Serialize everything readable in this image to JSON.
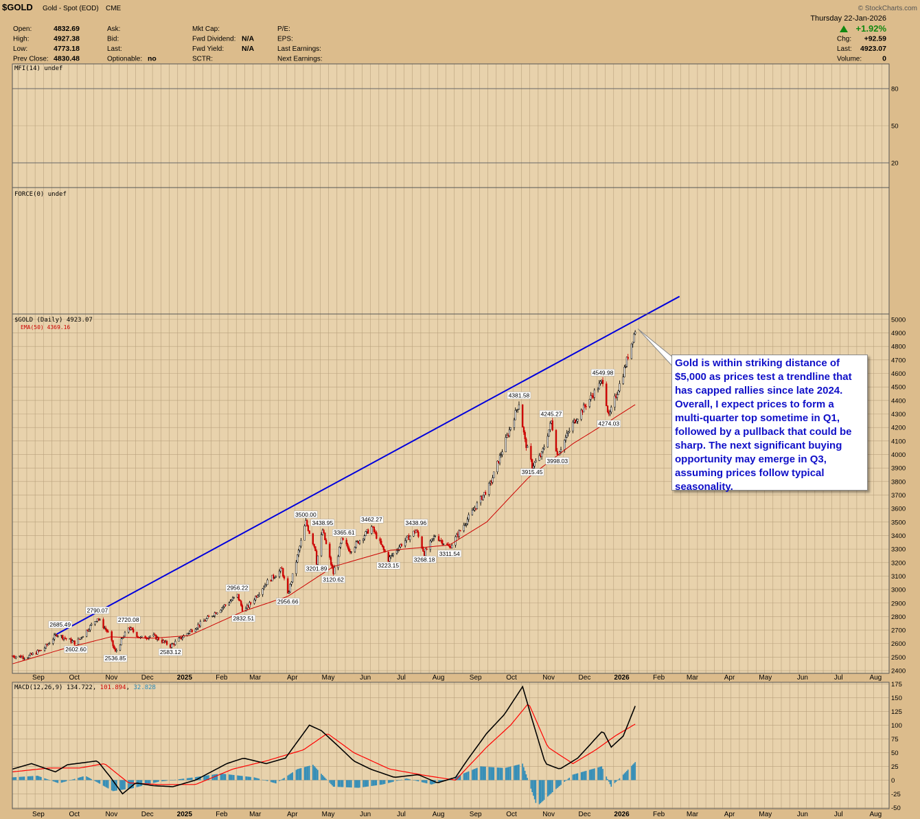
{
  "header": {
    "symbol": "$GOLD",
    "description": "Gold - Spot (EOD)",
    "exchange": "CME",
    "watermark": "© StockCharts.com",
    "date": "Thursday  22-Jan-2026",
    "fields": [
      {
        "label": "Open:",
        "value": "4832.69"
      },
      {
        "label": "High:",
        "value": "4927.38"
      },
      {
        "label": "Low:",
        "value": "4773.18"
      },
      {
        "label": "Prev Close:",
        "value": "4830.48"
      },
      {
        "label": "Ask:",
        "value": ""
      },
      {
        "label": "Bid:",
        "value": ""
      },
      {
        "label": "Last:",
        "value": ""
      },
      {
        "label": "Optionable:",
        "value": "no"
      },
      {
        "label": "Mkt Cap:",
        "value": ""
      },
      {
        "label": "Fwd Dividend:",
        "value": "N/A"
      },
      {
        "label": "Fwd Yield:",
        "value": "N/A"
      },
      {
        "label": "SCTR:",
        "value": ""
      },
      {
        "label": "P/E:",
        "value": ""
      },
      {
        "label": "EPS:",
        "value": ""
      },
      {
        "label": "Last Earnings:",
        "value": ""
      },
      {
        "label": "Next Earnings:",
        "value": ""
      }
    ],
    "change_pct": "+1.92%",
    "right_fields": [
      {
        "label": "Chg:",
        "value": "+92.59"
      },
      {
        "label": "Last:",
        "value": "4923.07"
      },
      {
        "label": "Volume:",
        "value": "0"
      }
    ]
  },
  "annotation": "Gold is within striking distance of $5,000 as prices test a trendline that has capped rallies since late 2024. Overall, I expect prices to form a multi-quarter top sometime in Q1, followed by a pullback that could be sharp. The next significant buying opportunity may emerge in Q3, assuming prices follow typical seasonality.",
  "chart_data": [
    {
      "type": "line",
      "panel": "MFI",
      "legend": "MFI(14) undef",
      "y_ticks": [
        80,
        50,
        20
      ],
      "ylim": [
        0,
        100
      ],
      "values": []
    },
    {
      "type": "line",
      "panel": "FORCE",
      "legend": "FORCE(0) undef",
      "values": []
    },
    {
      "type": "candlestick",
      "panel": "price",
      "legend": "$GOLD (Daily) 4923.07",
      "ema_legend": "EMA(50) 4369.16",
      "ylim": [
        2380,
        5040
      ],
      "y_ticks": [
        2400,
        2500,
        2600,
        2700,
        2800,
        2900,
        3000,
        3100,
        3200,
        3300,
        3400,
        3500,
        3600,
        3700,
        3800,
        3900,
        4000,
        4100,
        4200,
        4300,
        4400,
        4500,
        4600,
        4700,
        4800,
        4900,
        5000
      ],
      "x_labels": [
        "Sep",
        "Oct",
        "Nov",
        "Dec",
        "2025",
        "Feb",
        "Mar",
        "Apr",
        "May",
        "Jun",
        "Jul",
        "Aug",
        "Sep",
        "Oct",
        "Nov",
        "Dec",
        "2026",
        "Feb",
        "Mar",
        "Apr",
        "May",
        "Jun",
        "Jul",
        "Aug"
      ],
      "x_label_dates": [
        "2024-09-01",
        "2024-10-01",
        "2024-11-01",
        "2024-12-01",
        "2025-01-01",
        "2025-02-01",
        "2025-03-01",
        "2025-04-01",
        "2025-05-01",
        "2025-06-01",
        "2025-07-01",
        "2025-08-01",
        "2025-09-01",
        "2025-10-01",
        "2025-11-01",
        "2025-12-01",
        "2026-01-01",
        "2026-02-01",
        "2026-03-01",
        "2026-04-01",
        "2026-05-01",
        "2026-06-01",
        "2026-07-01",
        "2026-08-01"
      ],
      "xlim": [
        "2024-08-20",
        "2026-08-22"
      ],
      "price_path": [
        [
          "2024-08-20",
          2510
        ],
        [
          "2024-09-01",
          2500
        ],
        [
          "2024-09-15",
          2560
        ],
        [
          "2024-09-26",
          2670
        ],
        [
          "2024-10-08",
          2620
        ],
        [
          "2024-10-12",
          2602.6
        ],
        [
          "2024-10-30",
          2790.07
        ],
        [
          "2024-11-08",
          2680
        ],
        [
          "2024-11-14",
          2536.85
        ],
        [
          "2024-11-25",
          2720.08
        ],
        [
          "2024-12-05",
          2640
        ],
        [
          "2024-12-15",
          2660
        ],
        [
          "2024-12-30",
          2583.12
        ],
        [
          "2025-01-15",
          2690
        ],
        [
          "2025-02-01",
          2800
        ],
        [
          "2025-02-24",
          2956.22
        ],
        [
          "2025-03-01",
          2832.51
        ],
        [
          "2025-03-20",
          3050
        ],
        [
          "2025-04-02",
          3150
        ],
        [
          "2025-04-07",
          2956.66
        ],
        [
          "2025-04-22",
          3500.0
        ],
        [
          "2025-04-30",
          3300
        ],
        [
          "2025-05-01",
          3201.89
        ],
        [
          "2025-05-06",
          3438.95
        ],
        [
          "2025-05-15",
          3120.62
        ],
        [
          "2025-05-22",
          3365.61
        ],
        [
          "2025-05-29",
          3290
        ],
        [
          "2025-06-16",
          3462.27
        ],
        [
          "2025-06-30",
          3223.15
        ],
        [
          "2025-07-10",
          3330
        ],
        [
          "2025-07-23",
          3438.96
        ],
        [
          "2025-07-30",
          3268.18
        ],
        [
          "2025-08-08",
          3400
        ],
        [
          "2025-08-20",
          3311.54
        ],
        [
          "2025-09-01",
          3480
        ],
        [
          "2025-09-23",
          3780
        ],
        [
          "2025-10-17",
          4381.58
        ],
        [
          "2025-10-22",
          4100
        ],
        [
          "2025-10-28",
          3915.45
        ],
        [
          "2025-11-05",
          4000
        ],
        [
          "2025-11-13",
          4245.27
        ],
        [
          "2025-11-18",
          3998.03
        ],
        [
          "2025-12-01",
          4230
        ],
        [
          "2025-12-26",
          4549.98
        ],
        [
          "2025-12-31",
          4274.03
        ],
        [
          "2026-01-12",
          4600
        ],
        [
          "2026-01-22",
          4923.07
        ]
      ],
      "ema_path": [
        [
          "2024-08-20",
          2450
        ],
        [
          "2024-10-01",
          2560
        ],
        [
          "2024-11-10",
          2650
        ],
        [
          "2024-12-15",
          2640
        ],
        [
          "2025-01-15",
          2660
        ],
        [
          "2025-03-01",
          2840
        ],
        [
          "2025-04-07",
          2950
        ],
        [
          "2025-05-15",
          3170
        ],
        [
          "2025-07-01",
          3290
        ],
        [
          "2025-08-20",
          3330
        ],
        [
          "2025-09-20",
          3500
        ],
        [
          "2025-10-25",
          3830
        ],
        [
          "2025-12-01",
          4080
        ],
        [
          "2026-01-01",
          4250
        ],
        [
          "2026-01-22",
          4369.16
        ]
      ],
      "labels": [
        {
          "date": "2024-09-29",
          "value": 2685.49,
          "text": "2685.49",
          "pos": "above"
        },
        {
          "date": "2024-10-12",
          "value": 2602.6,
          "text": "2602.60",
          "pos": "below"
        },
        {
          "date": "2024-10-30",
          "value": 2790.07,
          "text": "2790.07",
          "pos": "above"
        },
        {
          "date": "2024-11-14",
          "value": 2536.85,
          "text": "2536.85",
          "pos": "below"
        },
        {
          "date": "2024-11-25",
          "value": 2720.08,
          "text": "2720.08",
          "pos": "above"
        },
        {
          "date": "2024-12-30",
          "value": 2583.12,
          "text": "2583.12",
          "pos": "below"
        },
        {
          "date": "2025-02-24",
          "value": 2956.22,
          "text": "2956.22",
          "pos": "above"
        },
        {
          "date": "2025-03-01",
          "value": 2832.51,
          "text": "2832.51",
          "pos": "below"
        },
        {
          "date": "2025-04-07",
          "value": 2956.66,
          "text": "2956.66",
          "pos": "below"
        },
        {
          "date": "2025-04-22",
          "value": 3500.0,
          "text": "3500.00",
          "pos": "above"
        },
        {
          "date": "2025-05-01",
          "value": 3201.89,
          "text": "3201.89",
          "pos": "below"
        },
        {
          "date": "2025-05-06",
          "value": 3438.95,
          "text": "3438.95",
          "pos": "above"
        },
        {
          "date": "2025-05-15",
          "value": 3120.62,
          "text": "3120.62",
          "pos": "below"
        },
        {
          "date": "2025-05-24",
          "value": 3365.61,
          "text": "3365.61",
          "pos": "above"
        },
        {
          "date": "2025-06-16",
          "value": 3462.27,
          "text": "3462.27",
          "pos": "above"
        },
        {
          "date": "2025-06-30",
          "value": 3223.15,
          "text": "3223.15",
          "pos": "below"
        },
        {
          "date": "2025-07-23",
          "value": 3438.96,
          "text": "3438.96",
          "pos": "above"
        },
        {
          "date": "2025-07-30",
          "value": 3268.18,
          "text": "3268.18",
          "pos": "below"
        },
        {
          "date": "2025-08-20",
          "value": 3311.54,
          "text": "3311.54",
          "pos": "below"
        },
        {
          "date": "2025-10-17",
          "value": 4381.58,
          "text": "4381.58",
          "pos": "above"
        },
        {
          "date": "2025-10-28",
          "value": 3915.45,
          "text": "3915.45",
          "pos": "below"
        },
        {
          "date": "2025-11-13",
          "value": 4245.27,
          "text": "4245.27",
          "pos": "above"
        },
        {
          "date": "2025-11-18",
          "value": 3998.03,
          "text": "3998.03",
          "pos": "below"
        },
        {
          "date": "2025-12-26",
          "value": 4549.98,
          "text": "4549.98",
          "pos": "above"
        },
        {
          "date": "2025-12-31",
          "value": 4274.03,
          "text": "4274.03",
          "pos": "below"
        }
      ],
      "trendline": {
        "start": [
          "2024-09-26",
          2670
        ],
        "end": [
          "2026-02-28",
          5170
        ]
      },
      "colors": {
        "up": "#000000",
        "down": "#cc0000",
        "ema": "#cc0000",
        "trendline": "#0000dd"
      }
    },
    {
      "type": "line",
      "panel": "MACD",
      "legend_name": "MACD(12,26,9)",
      "legend_values": [
        "134.722",
        "101.894",
        "32.828"
      ],
      "ylim": [
        -52,
        178
      ],
      "y_ticks": [
        175,
        150,
        125,
        100,
        75,
        50,
        25,
        0,
        -25,
        -50
      ],
      "macd_path": [
        [
          "2024-08-20",
          20
        ],
        [
          "2024-09-05",
          30
        ],
        [
          "2024-09-25",
          15
        ],
        [
          "2024-10-05",
          28
        ],
        [
          "2024-10-30",
          35
        ],
        [
          "2024-11-10",
          5
        ],
        [
          "2024-11-20",
          -25
        ],
        [
          "2024-12-01",
          -5
        ],
        [
          "2024-12-15",
          -10
        ],
        [
          "2025-01-01",
          -12
        ],
        [
          "2025-01-20",
          0
        ],
        [
          "2025-02-15",
          30
        ],
        [
          "2025-03-01",
          40
        ],
        [
          "2025-03-20",
          30
        ],
        [
          "2025-04-05",
          40
        ],
        [
          "2025-04-25",
          100
        ],
        [
          "2025-05-05",
          90
        ],
        [
          "2025-05-20",
          60
        ],
        [
          "2025-06-01",
          35
        ],
        [
          "2025-06-15",
          20
        ],
        [
          "2025-07-05",
          5
        ],
        [
          "2025-07-25",
          10
        ],
        [
          "2025-08-10",
          -5
        ],
        [
          "2025-08-25",
          5
        ],
        [
          "2025-09-05",
          40
        ],
        [
          "2025-09-20",
          85
        ],
        [
          "2025-10-05",
          120
        ],
        [
          "2025-10-20",
          170
        ],
        [
          "2025-10-28",
          110
        ],
        [
          "2025-11-08",
          30
        ],
        [
          "2025-11-20",
          20
        ],
        [
          "2025-12-05",
          40
        ],
        [
          "2025-12-26",
          90
        ],
        [
          "2026-01-02",
          60
        ],
        [
          "2026-01-12",
          80
        ],
        [
          "2026-01-22",
          134.722
        ]
      ],
      "signal_path": [
        [
          "2024-08-20",
          15
        ],
        [
          "2024-09-20",
          22
        ],
        [
          "2024-10-15",
          22
        ],
        [
          "2024-11-05",
          30
        ],
        [
          "2024-11-25",
          -5
        ],
        [
          "2024-12-20",
          -8
        ],
        [
          "2025-01-20",
          -8
        ],
        [
          "2025-02-20",
          20
        ],
        [
          "2025-03-20",
          35
        ],
        [
          "2025-04-20",
          55
        ],
        [
          "2025-05-10",
          85
        ],
        [
          "2025-06-01",
          50
        ],
        [
          "2025-07-01",
          20
        ],
        [
          "2025-08-01",
          8
        ],
        [
          "2025-08-25",
          0
        ],
        [
          "2025-09-20",
          60
        ],
        [
          "2025-10-10",
          100
        ],
        [
          "2025-10-25",
          140
        ],
        [
          "2025-11-10",
          60
        ],
        [
          "2025-12-01",
          30
        ],
        [
          "2025-12-20",
          55
        ],
        [
          "2026-01-05",
          80
        ],
        [
          "2026-01-22",
          101.894
        ]
      ],
      "histogram": [
        [
          "2024-08-20",
          5
        ],
        [
          "2024-09-10",
          8
        ],
        [
          "2024-09-28",
          -6
        ],
        [
          "2024-10-20",
          8
        ],
        [
          "2024-11-12",
          -20
        ],
        [
          "2024-11-28",
          -15
        ],
        [
          "2024-12-20",
          -3
        ],
        [
          "2025-01-15",
          4
        ],
        [
          "2025-02-10",
          12
        ],
        [
          "2025-03-10",
          5
        ],
        [
          "2025-03-28",
          -6
        ],
        [
          "2025-04-15",
          20
        ],
        [
          "2025-04-28",
          28
        ],
        [
          "2025-05-15",
          -12
        ],
        [
          "2025-06-05",
          -14
        ],
        [
          "2025-06-25",
          -8
        ],
        [
          "2025-07-15",
          3
        ],
        [
          "2025-08-05",
          -8
        ],
        [
          "2025-08-25",
          6
        ],
        [
          "2025-09-15",
          25
        ],
        [
          "2025-10-05",
          22
        ],
        [
          "2025-10-20",
          30
        ],
        [
          "2025-11-01",
          -48
        ],
        [
          "2025-11-15",
          -20
        ],
        [
          "2025-12-01",
          10
        ],
        [
          "2025-12-25",
          25
        ],
        [
          "2026-01-02",
          -12
        ],
        [
          "2026-01-12",
          10
        ],
        [
          "2026-01-22",
          32.828
        ]
      ],
      "colors": {
        "macd": "#000000",
        "signal": "#ff0000",
        "histogram": "#2a8ab8"
      }
    }
  ]
}
